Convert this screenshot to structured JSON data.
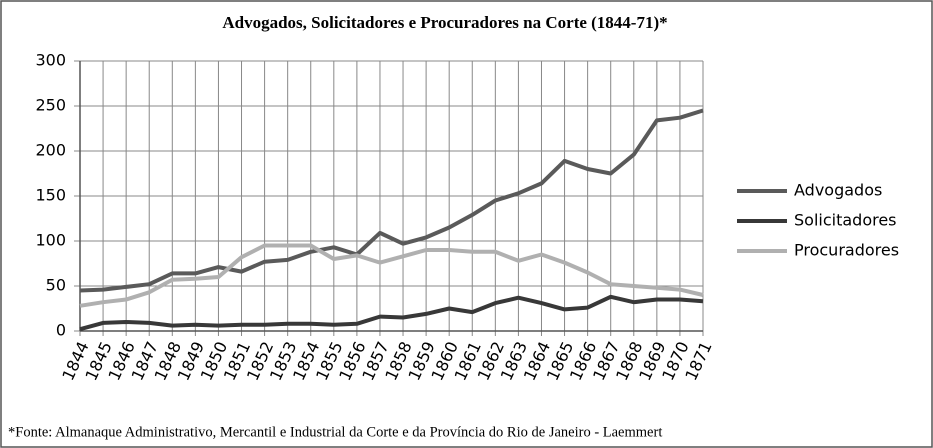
{
  "chart_data": {
    "type": "line",
    "title": "Advogados, Solicitadores e Procuradores na Corte (1844-71)*",
    "footnote": "*Fonte: Almanaque Administrativo, Mercantil e Industrial da Corte e da Província do Rio de Janeiro - Laemmert",
    "categories": [
      "1844",
      "1845",
      "1846",
      "1847",
      "1848",
      "1849",
      "1850",
      "1851",
      "1852",
      "1853",
      "1854",
      "1855",
      "1856",
      "1857",
      "1858",
      "1859",
      "1860",
      "1861",
      "1862",
      "1863",
      "1864",
      "1865",
      "1866",
      "1867",
      "1868",
      "1869",
      "1870",
      "1871"
    ],
    "series": [
      {
        "name": "Advogados",
        "color": "#5a5a5a",
        "values": [
          45,
          46,
          49,
          52,
          64,
          64,
          71,
          66,
          77,
          79,
          88,
          93,
          85,
          109,
          97,
          104,
          115,
          129,
          145,
          153,
          164,
          189,
          180,
          175,
          196,
          234,
          237,
          245
        ]
      },
      {
        "name": "Solicitadores",
        "color": "#383838",
        "values": [
          2,
          9,
          10,
          9,
          6,
          7,
          6,
          7,
          7,
          8,
          8,
          7,
          8,
          16,
          15,
          19,
          25,
          21,
          31,
          37,
          31,
          24,
          26,
          38,
          32,
          35,
          35,
          33
        ]
      },
      {
        "name": "Procuradores",
        "color": "#b0b0b0",
        "values": [
          28,
          32,
          35,
          43,
          57,
          58,
          60,
          82,
          95,
          95,
          95,
          80,
          84,
          76,
          83,
          90,
          90,
          88,
          88,
          78,
          85,
          76,
          65,
          52,
          50,
          48,
          46,
          40
        ]
      }
    ],
    "ylim": [
      0,
      300
    ],
    "yticks": [
      0,
      50,
      100,
      150,
      200,
      250,
      300
    ],
    "grid": true,
    "legend": "right"
  }
}
